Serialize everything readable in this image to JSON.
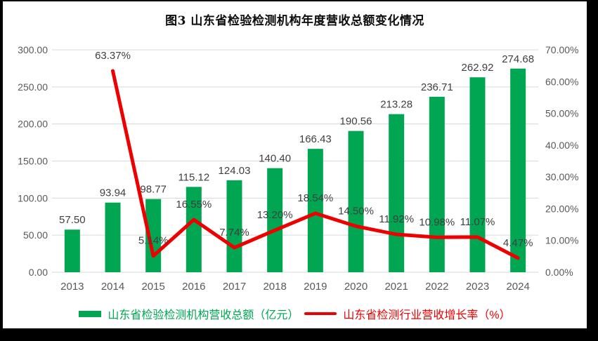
{
  "title": "图3  山东省检验检测机构年度营收总额变化情况",
  "chart_data": {
    "type": "combo",
    "title": "图3  山东省检验检测机构年度营收总额变化情况",
    "categories": [
      "2013",
      "2014",
      "2015",
      "2016",
      "2017",
      "2018",
      "2019",
      "2020",
      "2021",
      "2022",
      "2023",
      "2024"
    ],
    "series": [
      {
        "name": "山东省检验检测机构营收总额（亿元）",
        "type": "bar",
        "color": "#00A651",
        "values": [
          57.5,
          93.94,
          98.77,
          115.12,
          124.03,
          140.4,
          166.43,
          190.56,
          213.28,
          236.71,
          262.92,
          274.68
        ],
        "labels": [
          "57.50",
          "93.94",
          "98.77",
          "115.12",
          "124.03",
          "140.40",
          "166.43",
          "190.56",
          "213.28",
          "236.71",
          "262.92",
          "274.68"
        ]
      },
      {
        "name": "山东省检测行业营收增长率（%）",
        "type": "line",
        "color": "#EE0000",
        "values": [
          null,
          63.37,
          5.14,
          16.55,
          7.74,
          13.2,
          18.54,
          14.5,
          11.92,
          10.98,
          11.07,
          4.47
        ],
        "labels": [
          null,
          "63.37%",
          "5.14%",
          "16.55%",
          "7.74%",
          "13.20%",
          "18.54%",
          "14.50%",
          "11.92%",
          "10.98%",
          "11.07%",
          "4.47%"
        ]
      }
    ],
    "left_axis": {
      "min": 0,
      "max": 300,
      "step": 50,
      "tick_labels": [
        "0.00",
        "50.00",
        "100.00",
        "150.00",
        "200.00",
        "250.00",
        "300.00"
      ]
    },
    "right_axis": {
      "min": 0,
      "max": 70,
      "step": 10,
      "tick_labels": [
        "0.00%",
        "10.00%",
        "20.00%",
        "30.00%",
        "40.00%",
        "50.00%",
        "60.00%",
        "70.00%"
      ]
    },
    "gridlines": true,
    "legend_position": "bottom"
  },
  "colors": {
    "bar_green": "#00A651",
    "line_red": "#EE0000",
    "gridline": "#D9D9D9",
    "axis_text": "#595959",
    "data_label": "#3F3F3F",
    "title_text": "#0d0d0d",
    "frame_border": "#000000"
  }
}
